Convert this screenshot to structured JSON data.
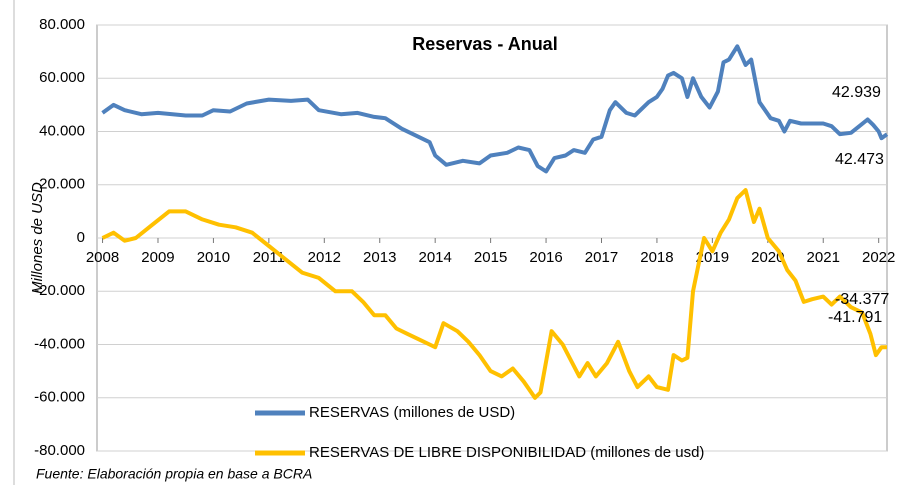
{
  "chart_data": {
    "type": "line",
    "title": "Reservas - Anual",
    "y_label": "Millones de USD",
    "source": "Fuente: Elaboración propia en base a BCRA",
    "xlim": [
      2007.9,
      2022.15
    ],
    "xticks": [
      2008,
      2009,
      2010,
      2011,
      2012,
      2013,
      2014,
      2015,
      2016,
      2017,
      2018,
      2019,
      2020,
      2021,
      2022
    ],
    "ylim": [
      -80000,
      80000
    ],
    "yticks": [
      {
        "value": -80000,
        "label": "-80.000"
      },
      {
        "value": -60000,
        "label": "-60.000"
      },
      {
        "value": -40000,
        "label": "-40.000"
      },
      {
        "value": -20000,
        "label": "-20.000"
      },
      0,
      {
        "value": 20000,
        "label": "20.000"
      },
      {
        "value": 40000,
        "label": "40.000"
      },
      {
        "value": 60000,
        "label": "60.000"
      },
      {
        "value": 80000,
        "label": "80.000"
      }
    ],
    "grid": true,
    "series": [
      {
        "name": "RESERVAS (millones de USD)",
        "color": "#4f81bd",
        "x": [
          2008.0,
          2008.2,
          2008.4,
          2008.7,
          2009.0,
          2009.5,
          2009.8,
          2010.0,
          2010.3,
          2010.6,
          2011.0,
          2011.4,
          2011.7,
          2011.9,
          2012.3,
          2012.6,
          2012.9,
          2013.1,
          2013.4,
          2013.7,
          2013.9,
          2014.0,
          2014.2,
          2014.5,
          2014.8,
          2015.0,
          2015.3,
          2015.5,
          2015.7,
          2015.85,
          2016.0,
          2016.15,
          2016.35,
          2016.5,
          2016.7,
          2016.85,
          2017.0,
          2017.15,
          2017.25,
          2017.45,
          2017.6,
          2017.85,
          2018.0,
          2018.1,
          2018.2,
          2018.3,
          2018.45,
          2018.55,
          2018.65,
          2018.8,
          2018.95,
          2019.1,
          2019.2,
          2019.3,
          2019.45,
          2019.6,
          2019.7,
          2019.85,
          2020.05,
          2020.2,
          2020.3,
          2020.4,
          2020.6,
          2020.8,
          2021.0,
          2021.15,
          2021.3,
          2021.5,
          2021.65,
          2021.8,
          2021.9,
          2022.0,
          2022.05,
          2022.15
        ],
        "values": [
          47000,
          50000,
          48000,
          46500,
          47000,
          46000,
          46000,
          48000,
          47500,
          50500,
          52000,
          51500,
          52000,
          48000,
          46500,
          47000,
          45500,
          45000,
          41000,
          38000,
          36000,
          31000,
          27500,
          29000,
          28000,
          31000,
          32000,
          34000,
          33000,
          27000,
          25000,
          30000,
          31000,
          33000,
          32000,
          37000,
          38000,
          48000,
          51000,
          47000,
          46000,
          51000,
          53000,
          56000,
          61000,
          62000,
          60000,
          53000,
          60000,
          53000,
          49000,
          55000,
          66000,
          67000,
          72000,
          65000,
          67000,
          51000,
          45000,
          44000,
          40000,
          44000,
          43000,
          43000,
          43000,
          42000,
          39000,
          39500,
          42000,
          44500,
          42500,
          40000,
          37500,
          39000
        ]
      },
      {
        "name": "RESERVAS DE LIBRE DISPONIBILIDAD (millones de usd)",
        "color": "#ffc000",
        "x": [
          2008.0,
          2008.2,
          2008.4,
          2008.6,
          2008.9,
          2009.2,
          2009.5,
          2009.8,
          2010.1,
          2010.4,
          2010.7,
          2011.0,
          2011.3,
          2011.6,
          2011.9,
          2012.2,
          2012.5,
          2012.7,
          2012.9,
          2013.1,
          2013.3,
          2013.5,
          2013.7,
          2013.9,
          2014.0,
          2014.15,
          2014.4,
          2014.6,
          2014.8,
          2015.0,
          2015.2,
          2015.4,
          2015.6,
          2015.8,
          2015.9,
          2016.1,
          2016.3,
          2016.45,
          2016.6,
          2016.75,
          2016.9,
          2017.1,
          2017.3,
          2017.5,
          2017.65,
          2017.85,
          2018.0,
          2018.2,
          2018.3,
          2018.45,
          2018.55,
          2018.65,
          2018.75,
          2018.85,
          2019.0,
          2019.15,
          2019.3,
          2019.45,
          2019.6,
          2019.75,
          2019.85,
          2020.0,
          2020.2,
          2020.35,
          2020.5,
          2020.65,
          2020.8,
          2021.0,
          2021.15,
          2021.3,
          2021.5,
          2021.7,
          2021.85,
          2021.95,
          2022.05,
          2022.15
        ],
        "values": [
          0,
          2000,
          -1000,
          0,
          5000,
          10000,
          10000,
          7000,
          5000,
          4000,
          2000,
          -3000,
          -8000,
          -13000,
          -15000,
          -20000,
          -20000,
          -24000,
          -29000,
          -29000,
          -34000,
          -36000,
          -38000,
          -40000,
          -41000,
          -32000,
          -35000,
          -39000,
          -44000,
          -50000,
          -52000,
          -49000,
          -54000,
          -60000,
          -58000,
          -35000,
          -40000,
          -46000,
          -52000,
          -47000,
          -52000,
          -47000,
          -39000,
          -50000,
          -56000,
          -52000,
          -56000,
          -57000,
          -44000,
          -46000,
          -45000,
          -20000,
          -10000,
          0,
          -5000,
          2000,
          7000,
          15000,
          18000,
          6000,
          11000,
          0,
          -5000,
          -12000,
          -16000,
          -24000,
          -23000,
          -22000,
          -25000,
          -22000,
          -26000,
          -28000,
          -36000,
          -44000,
          -41000,
          -41000
        ]
      }
    ],
    "annotations": [
      {
        "text": "42.939"
      },
      {
        "text": "42.473"
      },
      {
        "text": "-34.377"
      },
      {
        "text": "-41.791"
      }
    ]
  }
}
